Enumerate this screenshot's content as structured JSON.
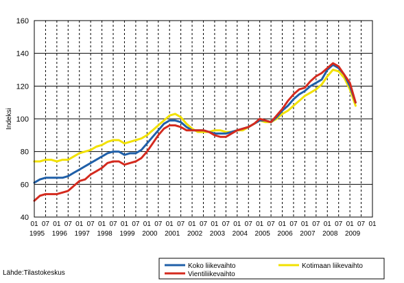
{
  "chart_data": {
    "type": "line",
    "title": "",
    "ylabel": "Indeksi",
    "xlabel": "",
    "ylim": [
      40,
      160
    ],
    "yticks": [
      40,
      60,
      80,
      100,
      120,
      140,
      160
    ],
    "grid": true,
    "x_month_labels": [
      "01",
      "07"
    ],
    "x_years": [
      "1995",
      "1996",
      "1997",
      "1998",
      "1999",
      "2000",
      "2001",
      "2002",
      "2003",
      "2004",
      "2005",
      "2006",
      "2007",
      "2008",
      "2009"
    ],
    "x_unit": "half-year",
    "legend_placement": "bottom",
    "source": "Lähde:Tilastokeskus",
    "series": [
      {
        "name": "Koko liikevaihto",
        "color": "#1f5fa8",
        "points": [
          [
            "1995-01",
            61
          ],
          [
            "1995-04",
            63
          ],
          [
            "1995-07",
            64
          ],
          [
            "1995-10",
            64
          ],
          [
            "1996-01",
            64
          ],
          [
            "1996-04",
            64
          ],
          [
            "1996-07",
            65
          ],
          [
            "1996-10",
            67
          ],
          [
            "1997-01",
            69
          ],
          [
            "1997-04",
            71
          ],
          [
            "1997-07",
            73
          ],
          [
            "1997-10",
            75
          ],
          [
            "1998-01",
            77
          ],
          [
            "1998-04",
            79
          ],
          [
            "1998-07",
            80
          ],
          [
            "1998-10",
            80
          ],
          [
            "1999-01",
            78
          ],
          [
            "1999-04",
            79
          ],
          [
            "1999-07",
            79
          ],
          [
            "1999-10",
            81
          ],
          [
            "2000-01",
            85
          ],
          [
            "2000-04",
            89
          ],
          [
            "2000-07",
            93
          ],
          [
            "2000-10",
            97
          ],
          [
            "2001-01",
            99
          ],
          [
            "2001-04",
            99
          ],
          [
            "2001-07",
            98
          ],
          [
            "2001-10",
            95
          ],
          [
            "2002-01",
            93
          ],
          [
            "2002-04",
            93
          ],
          [
            "2002-07",
            93
          ],
          [
            "2002-10",
            92
          ],
          [
            "2003-01",
            91
          ],
          [
            "2003-04",
            91
          ],
          [
            "2003-07",
            91
          ],
          [
            "2003-10",
            92
          ],
          [
            "2004-01",
            93
          ],
          [
            "2004-04",
            94
          ],
          [
            "2004-07",
            95
          ],
          [
            "2004-10",
            97
          ],
          [
            "2005-01",
            99
          ],
          [
            "2005-04",
            99
          ],
          [
            "2005-07",
            98
          ],
          [
            "2005-10",
            101
          ],
          [
            "2006-01",
            105
          ],
          [
            "2006-04",
            108
          ],
          [
            "2006-07",
            112
          ],
          [
            "2006-10",
            115
          ],
          [
            "2007-01",
            117
          ],
          [
            "2007-04",
            120
          ],
          [
            "2007-07",
            122
          ],
          [
            "2007-10",
            124
          ],
          [
            "2008-01",
            130
          ],
          [
            "2008-04",
            133
          ],
          [
            "2008-07",
            131
          ],
          [
            "2008-10",
            127
          ],
          [
            "2009-01",
            120
          ],
          [
            "2009-04",
            110
          ]
        ]
      },
      {
        "name": "Vientiliikevaihto",
        "color": "#d42a1e",
        "points": [
          [
            "1995-01",
            50
          ],
          [
            "1995-04",
            53
          ],
          [
            "1995-07",
            54
          ],
          [
            "1995-10",
            54
          ],
          [
            "1996-01",
            54
          ],
          [
            "1996-04",
            55
          ],
          [
            "1996-07",
            56
          ],
          [
            "1996-10",
            59
          ],
          [
            "1997-01",
            62
          ],
          [
            "1997-04",
            63
          ],
          [
            "1997-07",
            66
          ],
          [
            "1997-10",
            68
          ],
          [
            "1998-01",
            70
          ],
          [
            "1998-04",
            73
          ],
          [
            "1998-07",
            74
          ],
          [
            "1998-10",
            74
          ],
          [
            "1999-01",
            72
          ],
          [
            "1999-04",
            73
          ],
          [
            "1999-07",
            74
          ],
          [
            "1999-10",
            76
          ],
          [
            "2000-01",
            80
          ],
          [
            "2000-04",
            85
          ],
          [
            "2000-07",
            90
          ],
          [
            "2000-10",
            94
          ],
          [
            "2001-01",
            96
          ],
          [
            "2001-04",
            96
          ],
          [
            "2001-07",
            95
          ],
          [
            "2001-10",
            93
          ],
          [
            "2002-01",
            93
          ],
          [
            "2002-04",
            93
          ],
          [
            "2002-07",
            93
          ],
          [
            "2002-10",
            92
          ],
          [
            "2003-01",
            90
          ],
          [
            "2003-04",
            89
          ],
          [
            "2003-07",
            89
          ],
          [
            "2003-10",
            91
          ],
          [
            "2004-01",
            93
          ],
          [
            "2004-04",
            94
          ],
          [
            "2004-07",
            95
          ],
          [
            "2004-10",
            97
          ],
          [
            "2005-01",
            100
          ],
          [
            "2005-04",
            99
          ],
          [
            "2005-07",
            98
          ],
          [
            "2005-10",
            102
          ],
          [
            "2006-01",
            106
          ],
          [
            "2006-04",
            111
          ],
          [
            "2006-07",
            115
          ],
          [
            "2006-10",
            118
          ],
          [
            "2007-01",
            119
          ],
          [
            "2007-04",
            123
          ],
          [
            "2007-07",
            126
          ],
          [
            "2007-10",
            128
          ],
          [
            "2008-01",
            131
          ],
          [
            "2008-04",
            134
          ],
          [
            "2008-07",
            132
          ],
          [
            "2008-10",
            127
          ],
          [
            "2009-01",
            122
          ],
          [
            "2009-04",
            110
          ]
        ]
      },
      {
        "name": "Kotimaan liikevaihto",
        "color": "#f2e100",
        "points": [
          [
            "1995-01",
            74
          ],
          [
            "1995-04",
            74
          ],
          [
            "1995-07",
            75
          ],
          [
            "1995-10",
            75
          ],
          [
            "1996-01",
            74
          ],
          [
            "1996-04",
            75
          ],
          [
            "1996-07",
            75
          ],
          [
            "1996-10",
            77
          ],
          [
            "1997-01",
            79
          ],
          [
            "1997-04",
            80
          ],
          [
            "1997-07",
            81
          ],
          [
            "1997-10",
            83
          ],
          [
            "1998-01",
            84
          ],
          [
            "1998-04",
            86
          ],
          [
            "1998-07",
            87
          ],
          [
            "1998-10",
            87
          ],
          [
            "1999-01",
            85
          ],
          [
            "1999-04",
            86
          ],
          [
            "1999-07",
            87
          ],
          [
            "1999-10",
            88
          ],
          [
            "2000-01",
            90
          ],
          [
            "2000-04",
            93
          ],
          [
            "2000-07",
            96
          ],
          [
            "2000-10",
            99
          ],
          [
            "2001-01",
            102
          ],
          [
            "2001-04",
            103
          ],
          [
            "2001-07",
            101
          ],
          [
            "2001-10",
            97
          ],
          [
            "2002-01",
            94
          ],
          [
            "2002-04",
            92
          ],
          [
            "2002-07",
            92
          ],
          [
            "2002-10",
            92
          ],
          [
            "2003-01",
            93
          ],
          [
            "2003-04",
            93
          ],
          [
            "2003-07",
            92
          ],
          [
            "2003-10",
            92
          ],
          [
            "2004-01",
            93
          ],
          [
            "2004-04",
            93
          ],
          [
            "2004-07",
            95
          ],
          [
            "2004-10",
            97
          ],
          [
            "2005-01",
            99
          ],
          [
            "2005-04",
            98
          ],
          [
            "2005-07",
            98
          ],
          [
            "2005-10",
            100
          ],
          [
            "2006-01",
            103
          ],
          [
            "2006-04",
            105
          ],
          [
            "2006-07",
            108
          ],
          [
            "2006-10",
            111
          ],
          [
            "2007-01",
            114
          ],
          [
            "2007-04",
            116
          ],
          [
            "2007-07",
            118
          ],
          [
            "2007-10",
            121
          ],
          [
            "2008-01",
            126
          ],
          [
            "2008-04",
            130
          ],
          [
            "2008-07",
            129
          ],
          [
            "2008-10",
            125
          ],
          [
            "2009-01",
            118
          ],
          [
            "2009-04",
            108
          ]
        ]
      }
    ]
  }
}
